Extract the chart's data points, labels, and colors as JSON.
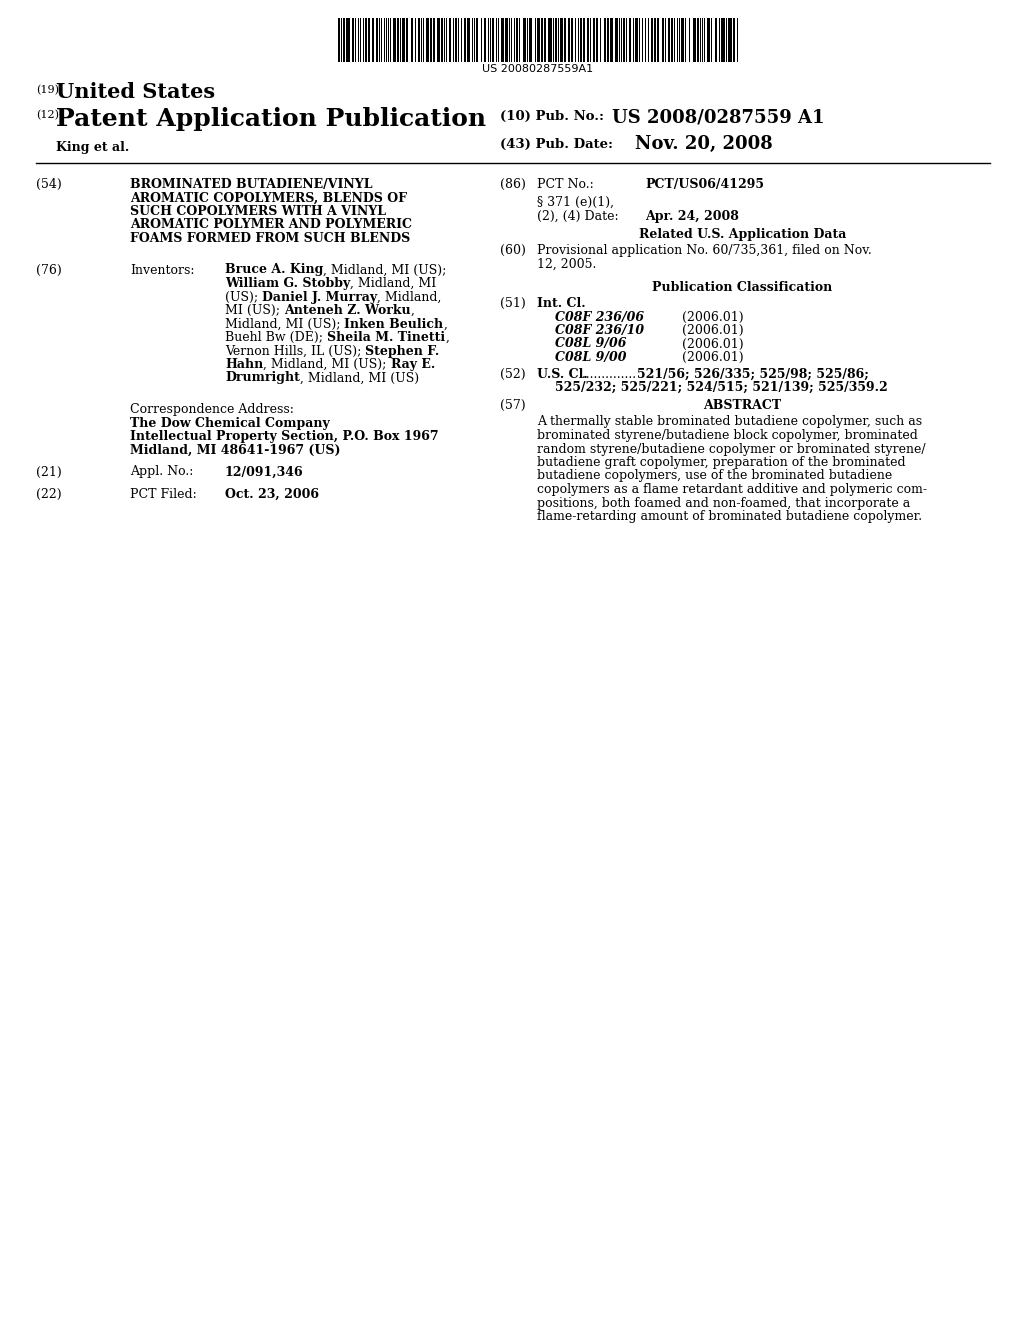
{
  "background_color": "#ffffff",
  "barcode_text": "US 20080287559A1",
  "header_19_sup": "(19)",
  "header_19_text": "United States",
  "header_12_sup": "(12)",
  "header_12_text": "Patent Application Publication",
  "header_king": "King et al.",
  "header_10_label": "(10) Pub. No.:",
  "header_10_value": "US 2008/0287559 A1",
  "header_43_label": "(43) Pub. Date:",
  "header_43_value": "Nov. 20, 2008",
  "field_54_num": "(54)",
  "field_54_title_lines": [
    "BROMINATED BUTADIENE/VINYL",
    "AROMATIC COPOLYMERS, BLENDS OF",
    "SUCH COPOLYMERS WITH A VINYL",
    "AROMATIC POLYMER AND POLYMERIC",
    "FOAMS FORMED FROM SUCH BLENDS"
  ],
  "field_76_num": "(76)",
  "field_76_label": "Inventors:",
  "inventors_lines": [
    [
      [
        "Bruce A. King",
        true
      ],
      [
        ", Midland, MI (US);",
        false
      ]
    ],
    [
      [
        "William G. Stobby",
        true
      ],
      [
        ", Midland, MI",
        false
      ]
    ],
    [
      [
        "(US); ",
        false
      ],
      [
        "Daniel J. Murray",
        true
      ],
      [
        ", Midland,",
        false
      ]
    ],
    [
      [
        "MI (US); ",
        false
      ],
      [
        "Anteneh Z. Worku",
        true
      ],
      [
        ",",
        false
      ]
    ],
    [
      [
        "Midland, MI (US); ",
        false
      ],
      [
        "Inken Beulich",
        true
      ],
      [
        ",",
        false
      ]
    ],
    [
      [
        "Buehl Bw (DE); ",
        false
      ],
      [
        "Sheila M. Tinetti",
        true
      ],
      [
        ",",
        false
      ]
    ],
    [
      [
        "Vernon Hills, IL (US); ",
        false
      ],
      [
        "Stephen F.",
        true
      ]
    ],
    [
      [
        "Hahn",
        true
      ],
      [
        ", Midland, MI (US); ",
        false
      ],
      [
        "Ray E.",
        true
      ]
    ],
    [
      [
        "Drumright",
        true
      ],
      [
        ", Midland, MI (US)",
        false
      ]
    ]
  ],
  "corr_label": "Correspondence Address:",
  "corr_company": "The Dow Chemical Company",
  "corr_dept": "Intellectual Property Section, P.O. Box 1967",
  "corr_city": "Midland, MI 48641-1967 (US)",
  "field_21_num": "(21)",
  "field_21_label": "Appl. No.:",
  "field_21_value": "12/091,346",
  "field_22_num": "(22)",
  "field_22_label": "PCT Filed:",
  "field_22_value": "Oct. 23, 2006",
  "field_86_num": "(86)",
  "field_86_label": "PCT No.:",
  "field_86_value": "PCT/US06/41295",
  "field_86b_label": "§ 371 (e)(1),",
  "field_86c_label": "(2), (4) Date:",
  "field_86c_value": "Apr. 24, 2008",
  "related_header": "Related U.S. Application Data",
  "field_60_num": "(60)",
  "field_60_lines": [
    "Provisional application No. 60/735,361, filed on Nov.",
    "12, 2005."
  ],
  "pub_class_header": "Publication Classification",
  "field_51_num": "(51)",
  "field_51_label": "Int. Cl.",
  "int_cl_entries": [
    [
      "C08F 236/06",
      "(2006.01)"
    ],
    [
      "C08F 236/10",
      "(2006.01)"
    ],
    [
      "C08L 9/06",
      "(2006.01)"
    ],
    [
      "C08L 9/00",
      "(2006.01)"
    ]
  ],
  "field_52_num": "(52)",
  "field_52_label": "U.S. Cl.",
  "us_cl_dots": "...............",
  "us_cl_line1": "521/56; 526/335; 525/98; 525/86;",
  "us_cl_line2": "525/232; 525/221; 524/515; 521/139; 525/359.2",
  "field_57_num": "(57)",
  "field_57_label": "ABSTRACT",
  "abstract_lines": [
    "A thermally stable brominated butadiene copolymer, such as",
    "brominated styrene/butadiene block copolymer, brominated",
    "random styrene/butadiene copolymer or brominated styrene/",
    "butadiene graft copolymer, preparation of the brominated",
    "butadiene copolymers, use of the brominated butadiene",
    "copolymers as a flame retardant additive and polymeric com-",
    "positions, both foamed and non-foamed, that incorporate a",
    "flame-retarding amount of brominated butadiene copolymer."
  ]
}
